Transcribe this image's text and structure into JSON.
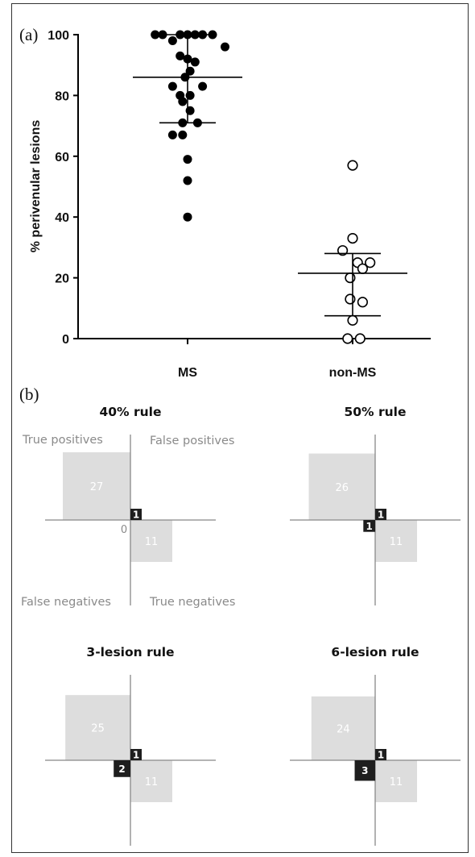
{
  "panel_a_label": "(a)",
  "panel_b_label": "(b)",
  "chart_data": [
    {
      "type": "scatter",
      "title": "",
      "xlabel": "",
      "ylabel": "% perivenular lesions",
      "categories": [
        "MS",
        "non-MS"
      ],
      "ylim": [
        0,
        100
      ],
      "yticks": [
        0,
        20,
        40,
        60,
        80,
        100
      ],
      "grid": false,
      "series": [
        {
          "category": "MS",
          "marker": "filled-circle",
          "points": [
            {
              "x": -0.65,
              "y": 100
            },
            {
              "x": -0.5,
              "y": 100
            },
            {
              "x": -0.3,
              "y": 98
            },
            {
              "x": -0.15,
              "y": 100
            },
            {
              "x": 0.0,
              "y": 100
            },
            {
              "x": 0.15,
              "y": 100
            },
            {
              "x": 0.3,
              "y": 100
            },
            {
              "x": 0.5,
              "y": 100
            },
            {
              "x": 0.75,
              "y": 96
            },
            {
              "x": -0.15,
              "y": 93
            },
            {
              "x": 0.0,
              "y": 92
            },
            {
              "x": 0.15,
              "y": 91
            },
            {
              "x": 0.05,
              "y": 88
            },
            {
              "x": -0.05,
              "y": 86
            },
            {
              "x": -0.3,
              "y": 83
            },
            {
              "x": 0.3,
              "y": 83
            },
            {
              "x": -0.15,
              "y": 80
            },
            {
              "x": 0.05,
              "y": 80
            },
            {
              "x": -0.1,
              "y": 78
            },
            {
              "x": 0.05,
              "y": 75
            },
            {
              "x": -0.1,
              "y": 71
            },
            {
              "x": 0.2,
              "y": 71
            },
            {
              "x": -0.3,
              "y": 67
            },
            {
              "x": -0.1,
              "y": 67
            },
            {
              "x": 0.0,
              "y": 59
            },
            {
              "x": 0.0,
              "y": 52
            },
            {
              "x": 0.0,
              "y": 40
            }
          ],
          "mean": 86,
          "error_upper": 100,
          "error_lower": 71
        },
        {
          "category": "non-MS",
          "marker": "open-circle",
          "points": [
            {
              "x": 0.0,
              "y": 57
            },
            {
              "x": 0.0,
              "y": 33
            },
            {
              "x": -0.2,
              "y": 29
            },
            {
              "x": 0.1,
              "y": 25
            },
            {
              "x": 0.35,
              "y": 25
            },
            {
              "x": 0.2,
              "y": 23
            },
            {
              "x": -0.05,
              "y": 20
            },
            {
              "x": -0.05,
              "y": 13
            },
            {
              "x": 0.2,
              "y": 12
            },
            {
              "x": 0.0,
              "y": 6
            },
            {
              "x": -0.1,
              "y": 0
            },
            {
              "x": 0.15,
              "y": 0
            }
          ],
          "mean": 21.5,
          "error_upper": 28,
          "error_lower": 7.5
        }
      ]
    },
    {
      "type": "quadrant",
      "title": "40% rule",
      "true_positives": 27,
      "false_positives": 1,
      "false_negatives": 0,
      "true_negatives": 11
    },
    {
      "type": "quadrant",
      "title": "50% rule",
      "true_positives": 26,
      "false_positives": 1,
      "false_negatives": 1,
      "true_negatives": 11
    },
    {
      "type": "quadrant",
      "title": "3-lesion rule",
      "true_positives": 25,
      "false_positives": 1,
      "false_negatives": 2,
      "true_negatives": 11
    },
    {
      "type": "quadrant",
      "title": "6-lesion rule",
      "true_positives": 24,
      "false_positives": 1,
      "false_negatives": 3,
      "true_negatives": 11
    }
  ],
  "corner_labels": {
    "true_positives": "True positives",
    "false_positives": "False positives",
    "false_negatives": "False negatives",
    "true_negatives": "True negatives"
  },
  "colors": {
    "marker": "#000000",
    "square_fill": "#dddddd",
    "square_text": "#ffffff",
    "black_box": "#1e1e1e",
    "corner_text": "#8a8a8a"
  }
}
